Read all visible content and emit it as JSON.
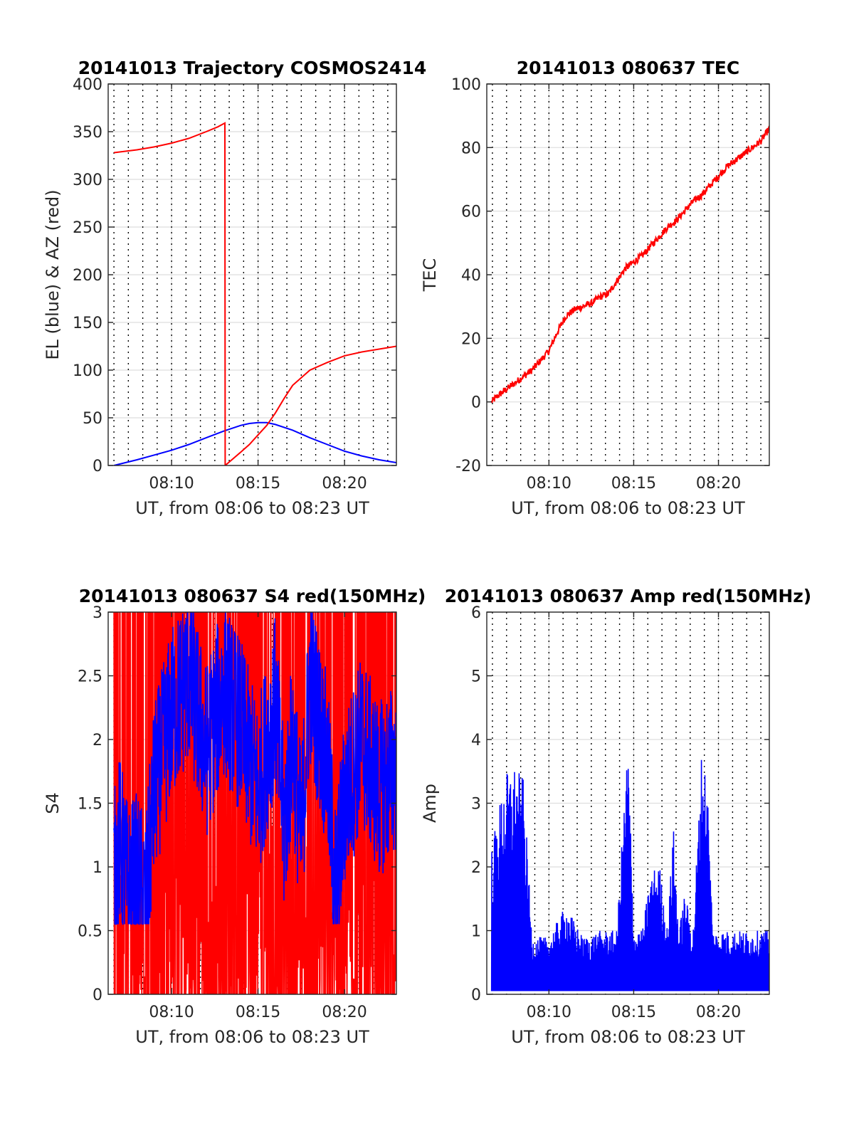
{
  "chart_data": [
    {
      "type": "line",
      "title": "20141013 Trajectory COSMOS2414",
      "xlabel": "UT, from 08:06 to 08:23 UT",
      "ylabel": "EL (blue) & AZ (red)",
      "xlim": [
        "08:06:20",
        "08:23:00"
      ],
      "ylim": [
        0,
        400
      ],
      "xticks": [
        "08:10",
        "08:15",
        "08:20"
      ],
      "yticks": [
        "0",
        "50",
        "100",
        "150",
        "200",
        "250",
        "300",
        "350",
        "400"
      ],
      "grid": true,
      "series": [
        {
          "color": "#0000ff",
          "x": [
            "08:06:40",
            "08:08:00",
            "08:09:00",
            "08:10:00",
            "08:11:00",
            "08:12:00",
            "08:13:00",
            "08:14:00",
            "08:14:30",
            "08:15:00",
            "08:15:30",
            "08:16:00",
            "08:17:00",
            "08:18:00",
            "08:19:00",
            "08:20:00",
            "08:21:00",
            "08:22:00",
            "08:23:00"
          ],
          "y": [
            0,
            6,
            11,
            16,
            22,
            29,
            36,
            42,
            44,
            45,
            45,
            43,
            37,
            29,
            22,
            15,
            10,
            6,
            3
          ]
        },
        {
          "color": "#ff0000",
          "x": [
            "08:06:40",
            "08:08:00",
            "08:09:00",
            "08:10:00",
            "08:11:00",
            "08:12:00",
            "08:12:40",
            "08:13:05",
            "08:13:06",
            "08:14:00",
            "08:14:30",
            "08:15:00",
            "08:15:30",
            "08:16:00",
            "08:16:30",
            "08:17:00",
            "08:18:00",
            "08:19:00",
            "08:20:00",
            "08:21:00",
            "08:22:00",
            "08:23:00"
          ],
          "y": [
            328,
            331,
            334,
            338,
            343,
            350,
            355,
            359,
            0,
            14,
            22,
            32,
            42,
            55,
            70,
            84,
            100,
            108,
            115,
            119,
            122,
            125
          ]
        }
      ]
    },
    {
      "type": "line",
      "title": "20141013 080637 TEC",
      "xlabel": "UT, from 08:06 to 08:23 UT",
      "ylabel": "TEC",
      "xlim": [
        "08:06:20",
        "08:23:00"
      ],
      "ylim": [
        -20,
        100
      ],
      "xticks": [
        "08:10",
        "08:15",
        "08:20"
      ],
      "yticks": [
        "-20",
        "0",
        "20",
        "40",
        "60",
        "80",
        "100"
      ],
      "grid": true,
      "series": [
        {
          "color": "#ff0000",
          "x": [
            "08:06:37",
            "08:07:00",
            "08:07:30",
            "08:08:00",
            "08:08:30",
            "08:09:00",
            "08:09:30",
            "08:10:00",
            "08:10:30",
            "08:11:00",
            "08:11:30",
            "08:12:00",
            "08:12:30",
            "08:13:00",
            "08:13:30",
            "08:14:00",
            "08:14:30",
            "08:15:00",
            "08:15:30",
            "08:16:00",
            "08:16:30",
            "08:17:00",
            "08:17:30",
            "08:18:00",
            "08:18:30",
            "08:19:00",
            "08:19:30",
            "08:20:00",
            "08:20:30",
            "08:21:00",
            "08:21:30",
            "08:22:00",
            "08:22:30",
            "08:23:00"
          ],
          "y": [
            0,
            2,
            4,
            6,
            8,
            10,
            13,
            16,
            22,
            27,
            29,
            30,
            31,
            33,
            34,
            38,
            42,
            44,
            46,
            49,
            52,
            55,
            57,
            60,
            63,
            65,
            68,
            71,
            74,
            76,
            78,
            80,
            82,
            86
          ]
        }
      ]
    },
    {
      "type": "line",
      "title": "20141013 080637 S4 red(150MHz)",
      "xlabel": "UT, from 08:06 to 08:23 UT",
      "ylabel": "S4",
      "xlim": [
        "08:06:20",
        "08:23:00"
      ],
      "ylim": [
        0,
        3
      ],
      "xticks": [
        "08:10",
        "08:15",
        "08:20"
      ],
      "yticks": [
        "0",
        "0.5",
        "1",
        "1.5",
        "2",
        "2.5",
        "3"
      ],
      "grid": true,
      "series": [
        {
          "color": "#ff0000",
          "x": [
            "08:06:40",
            "08:08:00",
            "08:09:30",
            "08:11:00",
            "08:12:30",
            "08:14:00",
            "08:15:00",
            "08:16:00",
            "08:17:00",
            "08:18:00",
            "08:19:30",
            "08:21:00",
            "08:23:00"
          ],
          "y": [
            0,
            3,
            0,
            3,
            0,
            3,
            0,
            3,
            0,
            3,
            0,
            3,
            0
          ]
        },
        {
          "color": "#0000ff",
          "x": [
            "08:06:40",
            "08:07:00",
            "08:07:30",
            "08:08:00",
            "08:08:30",
            "08:09:00",
            "08:10:00",
            "08:11:00",
            "08:12:00",
            "08:13:00",
            "08:14:00",
            "08:15:00",
            "08:16:00",
            "08:16:30",
            "08:17:00",
            "08:17:30",
            "08:18:00",
            "08:19:00",
            "08:19:30",
            "08:20:00",
            "08:21:00",
            "08:22:00",
            "08:23:00"
          ],
          "y": [
            0.9,
            1.2,
            0.8,
            0.9,
            0.7,
            1.6,
            2.2,
            2.5,
            1.9,
            2.4,
            2.1,
            1.6,
            2.3,
            1.3,
            2.0,
            1.2,
            2.5,
            1.8,
            0.8,
            1.5,
            2.0,
            1.6,
            1.8
          ]
        }
      ]
    },
    {
      "type": "line",
      "title": "20141013 080637 Amp red(150MHz)",
      "xlabel": "UT, from 08:06 to 08:23 UT",
      "ylabel": "Amp",
      "xlim": [
        "08:06:20",
        "08:23:00"
      ],
      "ylim": [
        0,
        6
      ],
      "xticks": [
        "08:10",
        "08:15",
        "08:20"
      ],
      "yticks": [
        "0",
        "1",
        "2",
        "3",
        "4",
        "5",
        "6"
      ],
      "grid": true,
      "series": [
        {
          "color": "#0000ff",
          "x": [
            "08:06:37",
            "08:07:00",
            "08:07:30",
            "08:08:00",
            "08:08:30",
            "08:09:00",
            "08:10:00",
            "08:11:00",
            "08:12:00",
            "08:13:00",
            "08:14:00",
            "08:14:40",
            "08:15:00",
            "08:15:30",
            "08:16:00",
            "08:16:30",
            "08:17:00",
            "08:17:20",
            "08:17:40",
            "08:18:00",
            "08:18:30",
            "08:19:00",
            "08:19:20",
            "08:19:40",
            "08:20:00",
            "08:21:00",
            "08:22:00",
            "08:23:00"
          ],
          "y": [
            2.3,
            2.9,
            3.5,
            3.6,
            3.4,
            0.9,
            0.9,
            1.4,
            0.9,
            1.0,
            1.0,
            4.1,
            1.0,
            1.0,
            1.9,
            2.1,
            1.0,
            2.7,
            1.0,
            1.6,
            1.0,
            3.8,
            3.5,
            1.0,
            1.0,
            1.0,
            1.0,
            1.0
          ]
        }
      ]
    }
  ]
}
